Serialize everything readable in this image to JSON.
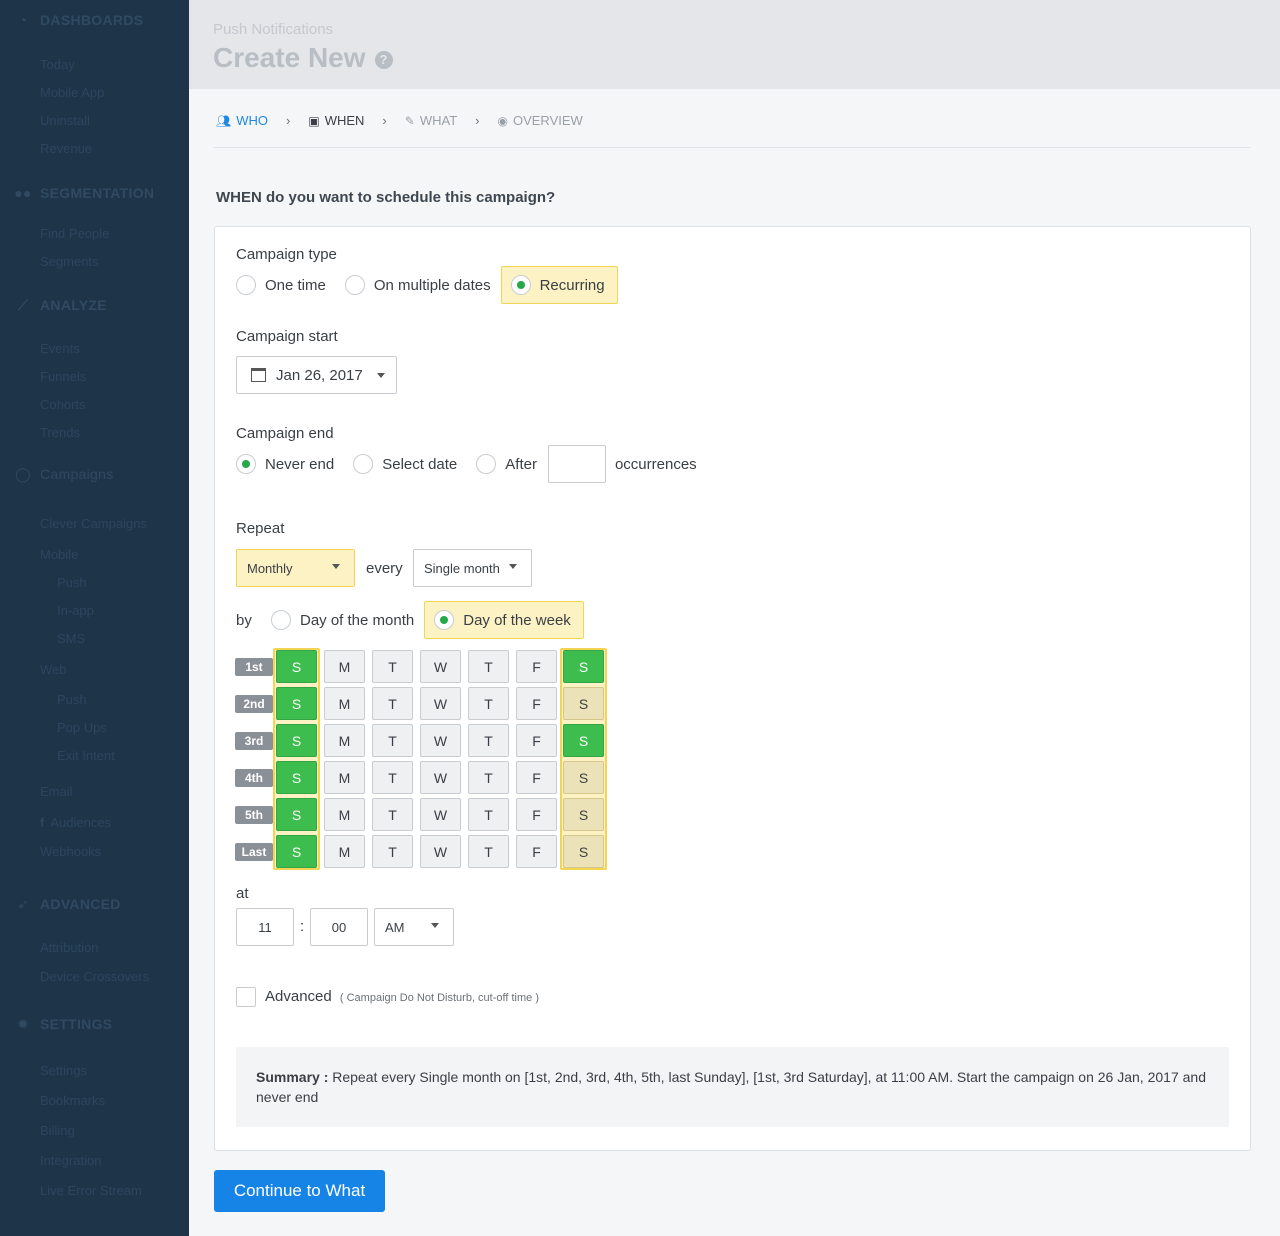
{
  "sidebar": {
    "sections": [
      {
        "label": "DASHBOARDS",
        "icon": "dashboard-icon"
      },
      {
        "label": "SEGMENTATION",
        "icon": "users-icon"
      },
      {
        "label": "ANALYZE",
        "icon": "line-chart-icon"
      },
      {
        "label": "Campaigns",
        "icon": "chat-bubble-icon"
      },
      {
        "label": "ADVANCED",
        "icon": "rocket-icon"
      },
      {
        "label": "SETTINGS",
        "icon": "gear-icon"
      }
    ],
    "items": {
      "today": "Today",
      "mobile_app": "Mobile App",
      "uninstall": "Uninstall",
      "revenue": "Revenue",
      "find_people": "Find People",
      "segments": "Segments",
      "events": "Events",
      "funnels": "Funnels",
      "cohorts": "Cohorts",
      "trends": "Trends",
      "clever_campaigns": "Clever Campaigns",
      "mobile": "Mobile",
      "push": "Push",
      "in_app": "In-app",
      "sms": "SMS",
      "web": "Web",
      "web_push": "Push",
      "pop_ups": "Pop Ups",
      "exit_intent": "Exit Intent",
      "email": "Email",
      "audiences": "Audiences",
      "webhooks": "Webhooks",
      "attribution": "Attribution",
      "device_crossovers": "Device Crossovers",
      "settings": "Settings",
      "bookmarks": "Bookmarks",
      "billing": "Billing",
      "integration": "Integration",
      "live_error_stream": "Live Error Stream"
    }
  },
  "header": {
    "breadcrumb": "Push Notifications",
    "title": "Create New",
    "help": "?"
  },
  "steps": [
    {
      "label": "WHO",
      "icon": "users-icon",
      "state": "active"
    },
    {
      "label": "WHEN",
      "icon": "calendar-check-icon",
      "state": "current"
    },
    {
      "label": "WHAT",
      "icon": "edit-icon",
      "state": "pending"
    },
    {
      "label": "OVERVIEW",
      "icon": "eye-icon",
      "state": "pending"
    }
  ],
  "step_separator": "›",
  "question": "WHEN do you want to schedule this campaign?",
  "campaign_type": {
    "label": "Campaign type",
    "options": [
      "One time",
      "On multiple dates",
      "Recurring"
    ],
    "selected": "Recurring"
  },
  "campaign_start": {
    "label": "Campaign start",
    "value": "Jan 26, 2017"
  },
  "campaign_end": {
    "label": "Campaign end",
    "options": [
      "Never end",
      "Select date",
      "After"
    ],
    "selected": "Never end",
    "occurrences_value": "",
    "occurrences_label": "occurrences"
  },
  "repeat": {
    "label": "Repeat",
    "frequency": "Monthly",
    "every_label": "every",
    "interval": "Single month",
    "by_label": "by",
    "by_options": [
      "Day of the month",
      "Day of the week"
    ],
    "by_selected": "Day of the week"
  },
  "week_grid": {
    "weeks": [
      "1st",
      "2nd",
      "3rd",
      "4th",
      "5th",
      "Last"
    ],
    "days": [
      "S",
      "M",
      "T",
      "W",
      "T",
      "F",
      "S"
    ],
    "selected": [
      [
        true,
        false,
        false,
        false,
        false,
        false,
        true
      ],
      [
        true,
        false,
        false,
        false,
        false,
        false,
        false
      ],
      [
        true,
        false,
        false,
        false,
        false,
        false,
        true
      ],
      [
        true,
        false,
        false,
        false,
        false,
        false,
        false
      ],
      [
        true,
        false,
        false,
        false,
        false,
        false,
        false
      ],
      [
        true,
        false,
        false,
        false,
        false,
        false,
        false
      ]
    ]
  },
  "time": {
    "label": "at",
    "hour": "11",
    "separator": ":",
    "minute": "00",
    "meridiem": "AM"
  },
  "advanced": {
    "label": "Advanced",
    "note": "( Campaign Do Not Disturb, cut-off time )",
    "checked": false
  },
  "summary": {
    "prefix": "Summary :",
    "text": " Repeat every Single month on [1st, 2nd, 3rd, 4th, 5th, last Sunday], [1st, 3rd Saturday], at 11:00 AM. Start the campaign on 26 Jan, 2017 and never end"
  },
  "continue_button": "Continue to What"
}
